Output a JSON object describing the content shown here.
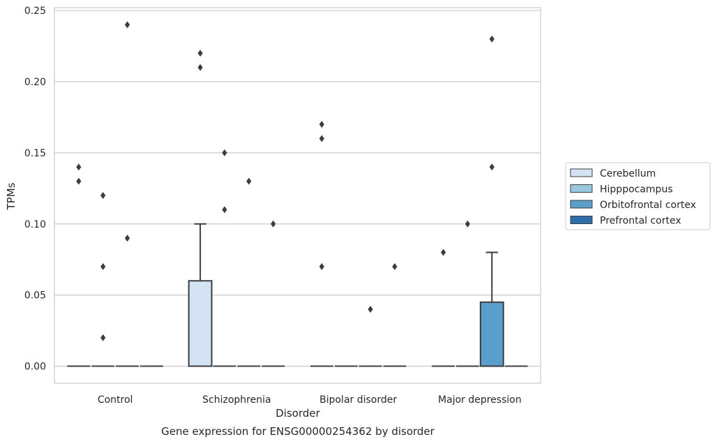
{
  "chart_data": {
    "type": "box",
    "caption": "Gene expression for ENSG00000254362 by disorder",
    "xlabel": "Disorder",
    "ylabel": "TPMs",
    "ylim": [
      -0.012,
      0.252
    ],
    "yticks": [
      0.0,
      0.05,
      0.1,
      0.15,
      0.2,
      0.25
    ],
    "ytick_labels": [
      "0.00",
      "0.05",
      "0.10",
      "0.15",
      "0.20",
      "0.25"
    ],
    "categories": [
      "Control",
      "Schizophrenia",
      "Bipolar disorder",
      "Major depression"
    ],
    "grid": "horizontal",
    "legend_position": "right",
    "series": [
      {
        "name": "Cerebellum",
        "color": "#d3e3f3",
        "boxes": [
          {
            "q1": 0,
            "median": 0,
            "q3": 0,
            "whisker_low": 0,
            "whisker_high": 0,
            "outliers": [
              0.14,
              0.13
            ]
          },
          {
            "q1": 0,
            "median": 0,
            "q3": 0.06,
            "whisker_low": 0,
            "whisker_high": 0.1,
            "outliers": [
              0.22,
              0.21
            ]
          },
          {
            "q1": 0,
            "median": 0,
            "q3": 0,
            "whisker_low": 0,
            "whisker_high": 0,
            "outliers": [
              0.17,
              0.16,
              0.07
            ]
          },
          {
            "q1": 0,
            "median": 0,
            "q3": 0,
            "whisker_low": 0,
            "whisker_high": 0,
            "outliers": [
              0.08
            ]
          }
        ]
      },
      {
        "name": "Hipppocampus",
        "color": "#9ac8e0",
        "boxes": [
          {
            "q1": 0,
            "median": 0,
            "q3": 0,
            "whisker_low": 0,
            "whisker_high": 0,
            "outliers": [
              0.12,
              0.07,
              0.02
            ]
          },
          {
            "q1": 0,
            "median": 0,
            "q3": 0,
            "whisker_low": 0,
            "whisker_high": 0,
            "outliers": [
              0.15,
              0.11
            ]
          },
          {
            "q1": 0,
            "median": 0,
            "q3": 0,
            "whisker_low": 0,
            "whisker_high": 0,
            "outliers": []
          },
          {
            "q1": 0,
            "median": 0,
            "q3": 0,
            "whisker_low": 0,
            "whisker_high": 0,
            "outliers": [
              0.1
            ]
          }
        ]
      },
      {
        "name": "Orbitofrontal cortex",
        "color": "#5a9fcc",
        "boxes": [
          {
            "q1": 0,
            "median": 0,
            "q3": 0,
            "whisker_low": 0,
            "whisker_high": 0,
            "outliers": [
              0.24,
              0.09
            ]
          },
          {
            "q1": 0,
            "median": 0,
            "q3": 0,
            "whisker_low": 0,
            "whisker_high": 0,
            "outliers": [
              0.13
            ]
          },
          {
            "q1": 0,
            "median": 0,
            "q3": 0,
            "whisker_low": 0,
            "whisker_high": 0,
            "outliers": [
              0.04
            ]
          },
          {
            "q1": 0,
            "median": 0,
            "q3": 0.045,
            "whisker_low": 0,
            "whisker_high": 0.08,
            "outliers": [
              0.23,
              0.14
            ]
          }
        ]
      },
      {
        "name": "Prefrontal cortex",
        "color": "#2c6eaa",
        "boxes": [
          {
            "q1": 0,
            "median": 0,
            "q3": 0,
            "whisker_low": 0,
            "whisker_high": 0,
            "outliers": []
          },
          {
            "q1": 0,
            "median": 0,
            "q3": 0,
            "whisker_low": 0,
            "whisker_high": 0,
            "outliers": [
              0.1
            ]
          },
          {
            "q1": 0,
            "median": 0,
            "q3": 0,
            "whisker_low": 0,
            "whisker_high": 0,
            "outliers": [
              0.07
            ]
          },
          {
            "q1": 0,
            "median": 0,
            "q3": 0,
            "whisker_low": 0,
            "whisker_high": 0,
            "outliers": []
          }
        ]
      }
    ]
  }
}
